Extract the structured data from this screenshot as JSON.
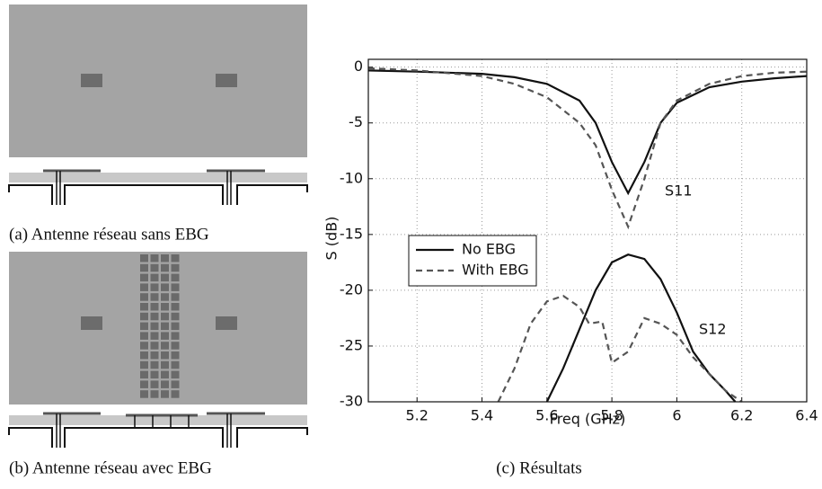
{
  "captions": {
    "a": "(a) Antenne réseau sans EBG",
    "b": "(b) Antenne réseau avec EBG",
    "c": "(c) Résultats"
  },
  "chart_data": {
    "type": "line",
    "xlabel": "Freq (GHz)",
    "ylabel": "S (dB)",
    "xlim": [
      5.05,
      6.4
    ],
    "xticks": [
      5.2,
      5.4,
      5.6,
      5.8,
      6,
      6.2,
      6.4
    ],
    "ylim": [
      -30,
      0.7
    ],
    "yticks": [
      0,
      -5,
      -10,
      -15,
      -20,
      -25,
      -30
    ],
    "grid": true,
    "annotations": [
      "S11",
      "S12"
    ],
    "series": [
      {
        "name": "No EBG",
        "color": "#111111",
        "dashed": false,
        "curves": [
          {
            "x": [
              5.05,
              5.2,
              5.4,
              5.5,
              5.6,
              5.7,
              5.75,
              5.8,
              5.85,
              5.9,
              5.95,
              6,
              6.1,
              6.2,
              6.3,
              6.4
            ],
            "values": [
              -0.3,
              -0.4,
              -0.6,
              -0.9,
              -1.5,
              -3,
              -5,
              -8.5,
              -11.3,
              -8.5,
              -5,
              -3.2,
              -1.8,
              -1.3,
              -1,
              -0.8
            ]
          },
          {
            "x": [
              5.6,
              5.65,
              5.7,
              5.75,
              5.8,
              5.85,
              5.9,
              5.95,
              6,
              6.05,
              6.1,
              6.15,
              6.18
            ],
            "values": [
              -30,
              -27,
              -23.5,
              -20,
              -17.5,
              -16.8,
              -17.2,
              -19,
              -22,
              -25.5,
              -27.5,
              -29,
              -30
            ]
          }
        ]
      },
      {
        "name": "With EBG",
        "color": "#555555",
        "dashed": true,
        "curves": [
          {
            "x": [
              5.05,
              5.2,
              5.4,
              5.5,
              5.6,
              5.7,
              5.75,
              5.8,
              5.85,
              5.9,
              5.95,
              6,
              6.1,
              6.2,
              6.3,
              6.4
            ],
            "values": [
              -0.1,
              -0.3,
              -0.8,
              -1.5,
              -2.7,
              -5,
              -7,
              -11,
              -14.3,
              -10,
              -5,
              -3,
              -1.5,
              -0.8,
              -0.5,
              -0.4
            ]
          },
          {
            "x": [
              5.45,
              5.5,
              5.55,
              5.6,
              5.65,
              5.7,
              5.73,
              5.77,
              5.8,
              5.85,
              5.9,
              5.95,
              6,
              6.05,
              6.1,
              6.15,
              6.2
            ],
            "values": [
              -30,
              -27,
              -23,
              -21,
              -20.5,
              -21.5,
              -23,
              -22.8,
              -26.5,
              -25.5,
              -22.5,
              -23,
              -24,
              -26,
              -27.5,
              -29,
              -30
            ]
          }
        ]
      }
    ]
  }
}
